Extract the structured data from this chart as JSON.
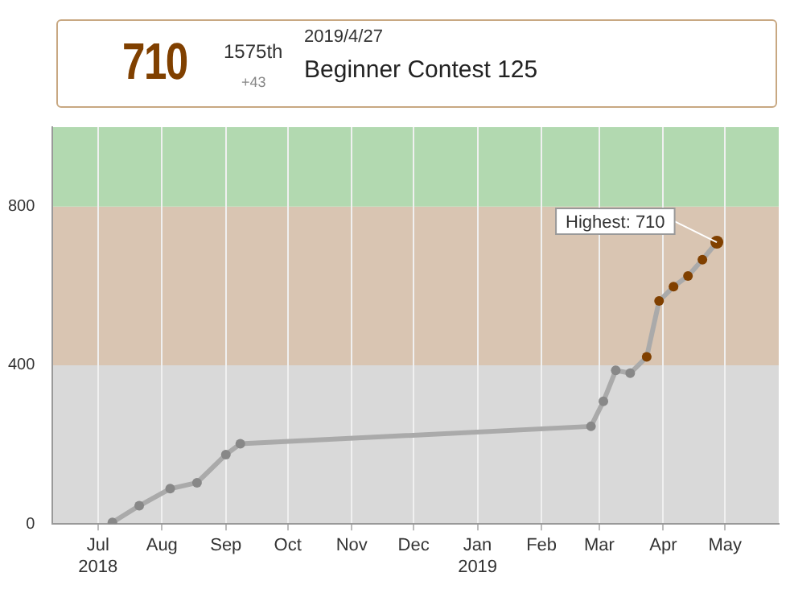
{
  "chart_data": {
    "type": "line",
    "title": "Beginner Contest 125",
    "subtitle": "2019/4/27",
    "annotations": [
      "710",
      "1575th",
      "+43",
      {
        "text": "Highest: 710",
        "x": "2019-04-27",
        "y": 710
      }
    ],
    "x": [
      "2018-07-08",
      "2018-07-21",
      "2018-08-05",
      "2018-08-18",
      "2018-09-01",
      "2018-09-08",
      "2019-02-25",
      "2019-03-03",
      "2019-03-09",
      "2019-03-16",
      "2019-03-24",
      "2019-03-30",
      "2019-04-06",
      "2019-04-13",
      "2019-04-20",
      "2019-04-27"
    ],
    "series": [
      {
        "color": "#aaaaaa",
        "values": [
          4,
          46,
          89,
          104,
          175,
          202,
          246,
          309,
          387,
          380,
          421,
          562,
          598,
          625,
          666,
          710
        ],
        "colors": [
          "#888888",
          "#888888",
          "#888888",
          "#888888",
          "#888888",
          "#888888",
          "#888888",
          "#888888",
          "#888888",
          "#888888",
          "#804000",
          "#804000",
          "#804000",
          "#804000",
          "#804000",
          "#804000"
        ]
      }
    ],
    "xlim": [
      "2018-06-09",
      "2019-05-27"
    ],
    "xticks": [
      {
        "value": "2018-07-01",
        "label": "Jul 2018"
      },
      {
        "value": "2018-08-01",
        "label": "Aug"
      },
      {
        "value": "2018-09-01",
        "label": "Sep"
      },
      {
        "value": "2018-10-01",
        "label": "Oct"
      },
      {
        "value": "2018-11-01",
        "label": "Nov"
      },
      {
        "value": "2018-12-01",
        "label": "Dec"
      },
      {
        "value": "2019-01-01",
        "label": "Jan 2019"
      },
      {
        "value": "2019-02-01",
        "label": "Feb"
      },
      {
        "value": "2019-03-01",
        "label": "Mar"
      },
      {
        "value": "2019-04-01",
        "label": "Apr"
      },
      {
        "value": "2019-05-01",
        "label": "May"
      }
    ],
    "ylim": [
      0,
      1000
    ],
    "yticks": [
      0,
      400,
      800
    ],
    "bands": [
      {
        "axis": "y",
        "from": 0,
        "to": 400,
        "color": "#d9d9d9"
      },
      {
        "axis": "y",
        "from": 400,
        "to": 800,
        "color": "#d9c5b2"
      },
      {
        "axis": "y",
        "from": 800,
        "to": 1000,
        "color": "#b2d9b0"
      }
    ],
    "grid": "x",
    "marker": "circle",
    "line_style": "solid",
    "legend": false
  }
}
